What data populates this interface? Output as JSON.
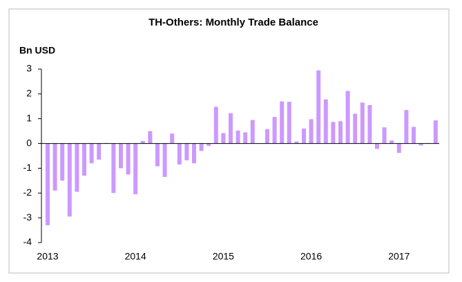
{
  "chart_data": {
    "type": "bar",
    "title": "TH-Others: Monthly Trade Balance",
    "y_label": "Bn USD",
    "categories": [
      "2013",
      null,
      null,
      null,
      null,
      null,
      null,
      null,
      null,
      null,
      null,
      null,
      "2014",
      null,
      null,
      null,
      null,
      null,
      null,
      null,
      null,
      null,
      null,
      null,
      "2015",
      null,
      null,
      null,
      null,
      null,
      null,
      null,
      null,
      null,
      null,
      null,
      "2016",
      null,
      null,
      null,
      null,
      null,
      null,
      null,
      null,
      null,
      null,
      null,
      "2017",
      null,
      null,
      null,
      null,
      null
    ],
    "values": [
      -3.3,
      -1.9,
      -1.5,
      -2.95,
      -1.95,
      -1.3,
      -0.8,
      -0.65,
      0.02,
      -2.0,
      -1.0,
      -1.25,
      -2.05,
      0.1,
      0.5,
      -0.92,
      -1.35,
      0.4,
      -0.85,
      -0.68,
      -0.8,
      -0.3,
      -0.1,
      1.48,
      0.42,
      1.22,
      0.52,
      0.45,
      0.95,
      0.0,
      0.58,
      1.07,
      1.7,
      1.68,
      0.08,
      0.6,
      0.98,
      2.95,
      1.78,
      0.87,
      0.9,
      2.12,
      1.2,
      1.65,
      1.55,
      -0.22,
      0.65,
      0.12,
      -0.38,
      1.35,
      0.67,
      -0.08,
      0.02,
      0.93
    ],
    "color": "#cc99ff",
    "ylim": [
      -4,
      3
    ],
    "yticks": [
      -4,
      -3,
      -2,
      -1,
      0,
      1,
      2,
      3
    ]
  }
}
